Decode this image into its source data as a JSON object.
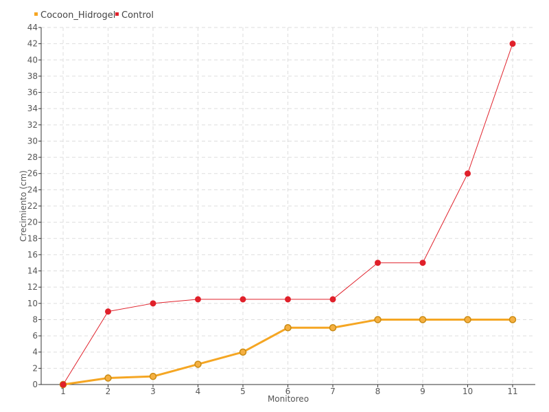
{
  "chart_data": {
    "type": "line",
    "xlabel": "Monitoreo",
    "ylabel": "Crecimiento (cm)",
    "x": [
      1,
      2,
      3,
      4,
      5,
      6,
      7,
      8,
      9,
      10,
      11
    ],
    "ylim": [
      0,
      44
    ],
    "ytick_step": 2,
    "grid": true,
    "legend_position": "top-left",
    "series": [
      {
        "name": "Cocoon_Hidrogel",
        "color": "#F5A623",
        "values": [
          0,
          0.8,
          1,
          2.5,
          4,
          7,
          7,
          8,
          8,
          8,
          8
        ]
      },
      {
        "name": "Control",
        "color": "#E0202A",
        "values": [
          0,
          9,
          10,
          10.5,
          10.5,
          10.5,
          10.5,
          15,
          15,
          26,
          42
        ]
      }
    ]
  }
}
